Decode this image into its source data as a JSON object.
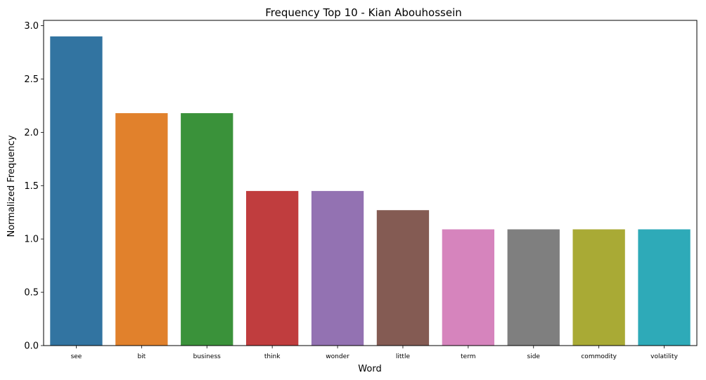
{
  "chart_data": {
    "type": "bar",
    "title": "Frequency Top 10 - Kian Abouhossein",
    "xlabel": "Word",
    "ylabel": "Normalized Frequency",
    "categories": [
      "see",
      "bit",
      "business",
      "think",
      "wonder",
      "little",
      "term",
      "side",
      "commodity",
      "volatility"
    ],
    "values": [
      2.9,
      2.18,
      2.18,
      1.45,
      1.45,
      1.27,
      1.09,
      1.09,
      1.09,
      1.09
    ],
    "colors": [
      "#3274a1",
      "#e1812c",
      "#3a923a",
      "#c03d3e",
      "#9372b2",
      "#845b53",
      "#d684bd",
      "#7f7f7f",
      "#a9aa35",
      "#2eaab8"
    ],
    "ylim": [
      0,
      3.05
    ],
    "yticks": [
      0.0,
      0.5,
      1.0,
      1.5,
      2.0,
      2.5,
      3.0
    ],
    "ytick_labels": [
      "0.0",
      "0.5",
      "1.0",
      "1.5",
      "2.0",
      "2.5",
      "3.0"
    ],
    "grid": false,
    "legend": "none"
  }
}
